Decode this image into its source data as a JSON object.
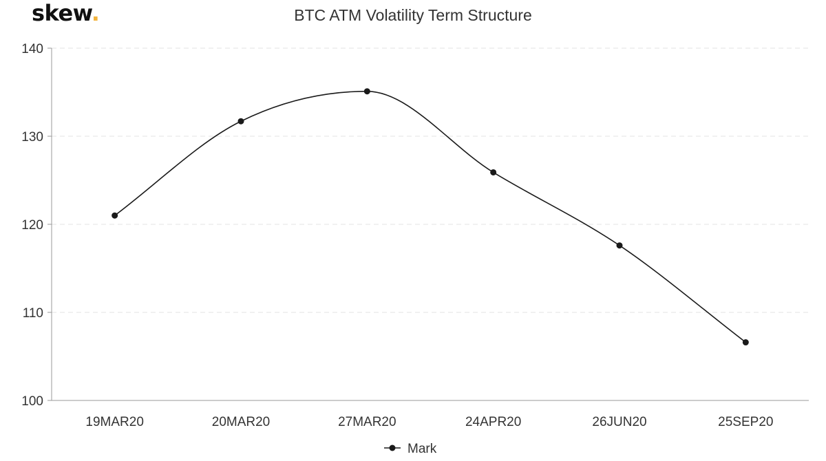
{
  "brand": {
    "logo_text": "skew",
    "logo_dot": ".",
    "accent_color": "#f2b33d"
  },
  "chart_data": {
    "type": "line",
    "title": "BTC ATM Volatility Term Structure",
    "xlabel": "",
    "ylabel": "",
    "categories": [
      "19MAR20",
      "20MAR20",
      "27MAR20",
      "24APR20",
      "26JUN20",
      "25SEP20"
    ],
    "series": [
      {
        "name": "Mark",
        "color": "#1a1a1a",
        "values": [
          121.0,
          131.7,
          135.1,
          125.9,
          117.6,
          106.6
        ]
      }
    ],
    "ylim": [
      100,
      140
    ],
    "yticks": [
      100,
      110,
      120,
      130,
      140
    ],
    "grid": true,
    "smooth": true,
    "legend_position": "bottom-center"
  }
}
